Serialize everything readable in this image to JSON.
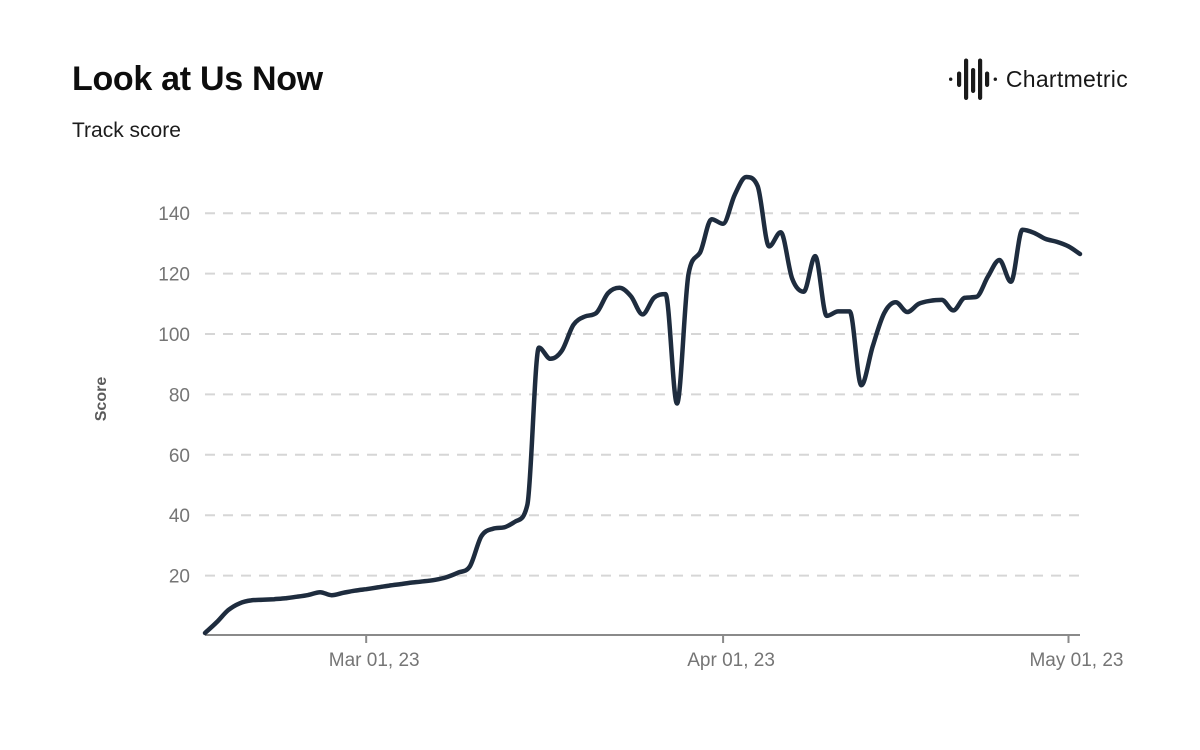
{
  "header": {
    "title": "Look at Us Now",
    "subtitle": "Track score"
  },
  "brand": {
    "name": "Chartmetric",
    "icon": "waveform-icon"
  },
  "chart_data": {
    "type": "line",
    "title": "Look at Us Now",
    "series_name": "Track score",
    "ylabel": "Score",
    "grid": "horizontal-dashed",
    "legend": "none",
    "ylim": [
      0,
      155
    ],
    "yticks": [
      20,
      40,
      60,
      80,
      100,
      120,
      140
    ],
    "xticks": [
      {
        "label": "Mar 01, 23",
        "index": 14
      },
      {
        "label": "Apr 01, 23",
        "index": 45
      },
      {
        "label": "May 01, 23",
        "index": 75
      }
    ],
    "x": [
      "Feb 15",
      "Feb 16",
      "Feb 17",
      "Feb 18",
      "Feb 19",
      "Feb 20",
      "Feb 21",
      "Feb 22",
      "Feb 23",
      "Feb 24",
      "Feb 25",
      "Feb 26",
      "Feb 27",
      "Feb 28",
      "Mar 01",
      "Mar 02",
      "Mar 03",
      "Mar 04",
      "Mar 05",
      "Mar 06",
      "Mar 07",
      "Mar 08",
      "Mar 09",
      "Mar 10",
      "Mar 11",
      "Mar 12",
      "Mar 13",
      "Mar 14",
      "Mar 15",
      "Mar 16",
      "Mar 17",
      "Mar 18",
      "Mar 19",
      "Mar 20",
      "Mar 21",
      "Mar 22",
      "Mar 23",
      "Mar 24",
      "Mar 25",
      "Mar 26",
      "Mar 27",
      "Mar 28",
      "Mar 29",
      "Mar 30",
      "Mar 31",
      "Apr 01",
      "Apr 02",
      "Apr 03",
      "Apr 04",
      "Apr 05",
      "Apr 06",
      "Apr 07",
      "Apr 08",
      "Apr 09",
      "Apr 10",
      "Apr 11",
      "Apr 12",
      "Apr 13",
      "Apr 14",
      "Apr 15",
      "Apr 16",
      "Apr 17",
      "Apr 18",
      "Apr 19",
      "Apr 20",
      "Apr 21",
      "Apr 22",
      "Apr 23",
      "Apr 24",
      "Apr 25",
      "Apr 26",
      "Apr 27",
      "Apr 28",
      "Apr 29",
      "Apr 30",
      "May 01",
      "May 02"
    ],
    "values": [
      1,
      4.5,
      8.5,
      10.8,
      11.8,
      12,
      12.2,
      12.5,
      13,
      13.6,
      14.5,
      13.5,
      14.3,
      15,
      15.5,
      16.1,
      16.7,
      17.2,
      17.7,
      18.1,
      18.6,
      19.5,
      21,
      23,
      33,
      35.5,
      36,
      38,
      43.5,
      95.5,
      91.8,
      94.5,
      103,
      105.8,
      107,
      113.5,
      115.3,
      112.5,
      106.5,
      112,
      113.2,
      77,
      120,
      127,
      138,
      136.5,
      146,
      152,
      149,
      129,
      133.7,
      118.3,
      114,
      125.8,
      106,
      107.5,
      107.5,
      83,
      96,
      107,
      110.5,
      107.3,
      110,
      111,
      111.3,
      107.8,
      112,
      112.3,
      119,
      124.5,
      117.3,
      134.5,
      133.5,
      131.5,
      130.5,
      129,
      126.5
    ],
    "line_color": "#1e2c3e",
    "grid_color": "#d6d6d6",
    "axis_color": "#8a8a8a",
    "tick_label_color": "#757575",
    "ylabel_color": "#5a5a5a"
  }
}
